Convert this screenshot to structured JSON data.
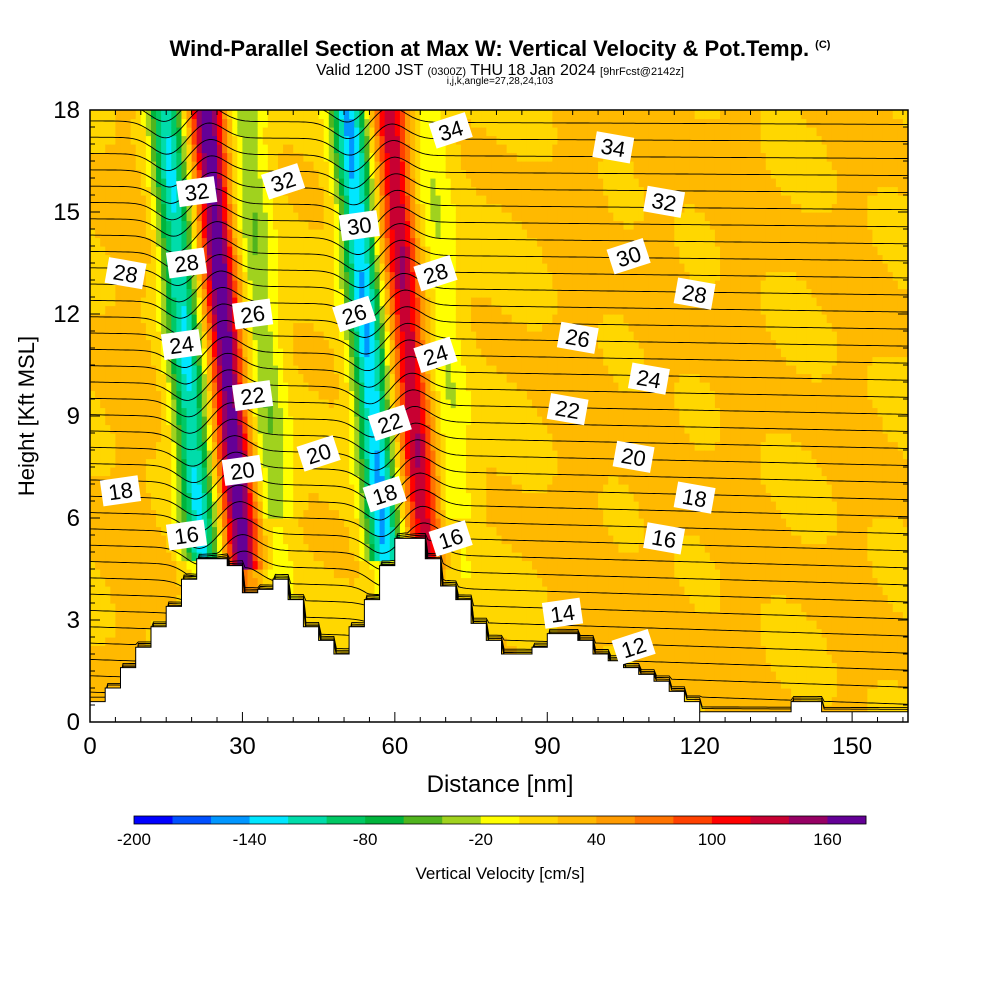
{
  "title": "Wind-Parallel Section at Max W: Vertical Velocity & Pot.Temp.",
  "copyright_mark": "(C)",
  "subtitle_main": "Valid 1200 JST",
  "subtitle_utc": "(0300Z)",
  "subtitle_date": "THU 18 Jan 2024",
  "subtitle_fcst": "[9hrFcst@2142z]",
  "grid_info": "i,j,k,angle=27,28,24,103",
  "chart_data": {
    "type": "heatmap",
    "xlabel": "Distance [nm]",
    "ylabel": "Height [Kft MSL]",
    "xlim": [
      0,
      161
    ],
    "ylim": [
      0,
      18
    ],
    "x_ticks": [
      0,
      30,
      60,
      90,
      120,
      150
    ],
    "y_ticks": [
      0,
      3,
      6,
      9,
      12,
      15,
      18
    ],
    "colorbar": {
      "title": "Vertical Velocity [cm/s]",
      "range": [
        -200,
        180
      ],
      "step": 20,
      "tick_labels": [
        -200,
        -140,
        -80,
        -20,
        40,
        100,
        160
      ],
      "colors": [
        "#0000ff",
        "#0050ff",
        "#0096ff",
        "#00e6ff",
        "#00dcaa",
        "#00c864",
        "#00b43c",
        "#50b41e",
        "#a0d21e",
        "#ffff00",
        "#ffd700",
        "#ffb900",
        "#ff9b00",
        "#ff7300",
        "#ff4100",
        "#ff0000",
        "#c80032",
        "#960064",
        "#640096"
      ]
    },
    "terrain_kft": [
      [
        0,
        0.6
      ],
      [
        3,
        1.0
      ],
      [
        6,
        1.6
      ],
      [
        9,
        2.2
      ],
      [
        12,
        2.8
      ],
      [
        15,
        3.4
      ],
      [
        18,
        4.2
      ],
      [
        21,
        4.8
      ],
      [
        24,
        4.8
      ],
      [
        27,
        4.6
      ],
      [
        30,
        3.8
      ],
      [
        33,
        3.9
      ],
      [
        36,
        4.2
      ],
      [
        39,
        3.6
      ],
      [
        42,
        2.8
      ],
      [
        45,
        2.4
      ],
      [
        48,
        2.0
      ],
      [
        51,
        2.8
      ],
      [
        54,
        3.6
      ],
      [
        57,
        4.6
      ],
      [
        60,
        5.4
      ],
      [
        63,
        5.4
      ],
      [
        66,
        4.8
      ],
      [
        69,
        4.0
      ],
      [
        72,
        3.6
      ],
      [
        75,
        2.9
      ],
      [
        78,
        2.4
      ],
      [
        81,
        2.0
      ],
      [
        84,
        2.0
      ],
      [
        87,
        2.2
      ],
      [
        90,
        2.6
      ],
      [
        93,
        2.6
      ],
      [
        96,
        2.4
      ],
      [
        99,
        2.0
      ],
      [
        102,
        1.8
      ],
      [
        105,
        1.6
      ],
      [
        108,
        1.4
      ],
      [
        111,
        1.2
      ],
      [
        114,
        0.9
      ],
      [
        117,
        0.6
      ],
      [
        120,
        0.3
      ],
      [
        123,
        0.3
      ],
      [
        126,
        0.3
      ],
      [
        129,
        0.3
      ],
      [
        132,
        0.3
      ],
      [
        135,
        0.3
      ],
      [
        138,
        0.6
      ],
      [
        141,
        0.6
      ],
      [
        144,
        0.3
      ],
      [
        147,
        0.3
      ],
      [
        150,
        0.3
      ],
      [
        153,
        0.3
      ],
      [
        156,
        0.3
      ],
      [
        159,
        0.3
      ],
      [
        161,
        0.3
      ]
    ],
    "wave_updrafts": [
      {
        "center_nm": 30,
        "peak_cms": 160
      },
      {
        "center_nm": 66,
        "peak_cms": 120
      }
    ],
    "wave_downdrafts": [
      {
        "center_nm": 22,
        "peak_cms": -140
      },
      {
        "center_nm": 58,
        "peak_cms": -160
      }
    ],
    "isentrope_labels": [
      {
        "value": "34",
        "x": 71,
        "y": 17.4
      },
      {
        "value": "34",
        "x": 103,
        "y": 16.9
      },
      {
        "value": "32",
        "x": 21,
        "y": 15.6
      },
      {
        "value": "32",
        "x": 38,
        "y": 15.9
      },
      {
        "value": "32",
        "x": 113,
        "y": 15.3
      },
      {
        "value": "30",
        "x": 53,
        "y": 14.6
      },
      {
        "value": "30",
        "x": 106,
        "y": 13.7
      },
      {
        "value": "28",
        "x": 7,
        "y": 13.2
      },
      {
        "value": "28",
        "x": 19,
        "y": 13.5
      },
      {
        "value": "28",
        "x": 68,
        "y": 13.2
      },
      {
        "value": "28",
        "x": 119,
        "y": 12.6
      },
      {
        "value": "26",
        "x": 32,
        "y": 12.0
      },
      {
        "value": "26",
        "x": 52,
        "y": 12.0
      },
      {
        "value": "26",
        "x": 96,
        "y": 11.3
      },
      {
        "value": "24",
        "x": 18,
        "y": 11.1
      },
      {
        "value": "24",
        "x": 68,
        "y": 10.8
      },
      {
        "value": "24",
        "x": 110,
        "y": 10.1
      },
      {
        "value": "22",
        "x": 32,
        "y": 9.6
      },
      {
        "value": "22",
        "x": 59,
        "y": 8.8
      },
      {
        "value": "22",
        "x": 94,
        "y": 9.2
      },
      {
        "value": "20",
        "x": 30,
        "y": 7.4
      },
      {
        "value": "20",
        "x": 45,
        "y": 7.9
      },
      {
        "value": "20",
        "x": 107,
        "y": 7.8
      },
      {
        "value": "18",
        "x": 6,
        "y": 6.8
      },
      {
        "value": "18",
        "x": 58,
        "y": 6.7
      },
      {
        "value": "18",
        "x": 119,
        "y": 6.6
      },
      {
        "value": "16",
        "x": 19,
        "y": 5.5
      },
      {
        "value": "16",
        "x": 71,
        "y": 5.4
      },
      {
        "value": "16",
        "x": 113,
        "y": 5.4
      },
      {
        "value": "14",
        "x": 93,
        "y": 3.2
      },
      {
        "value": "12",
        "x": 107,
        "y": 2.2
      }
    ]
  }
}
